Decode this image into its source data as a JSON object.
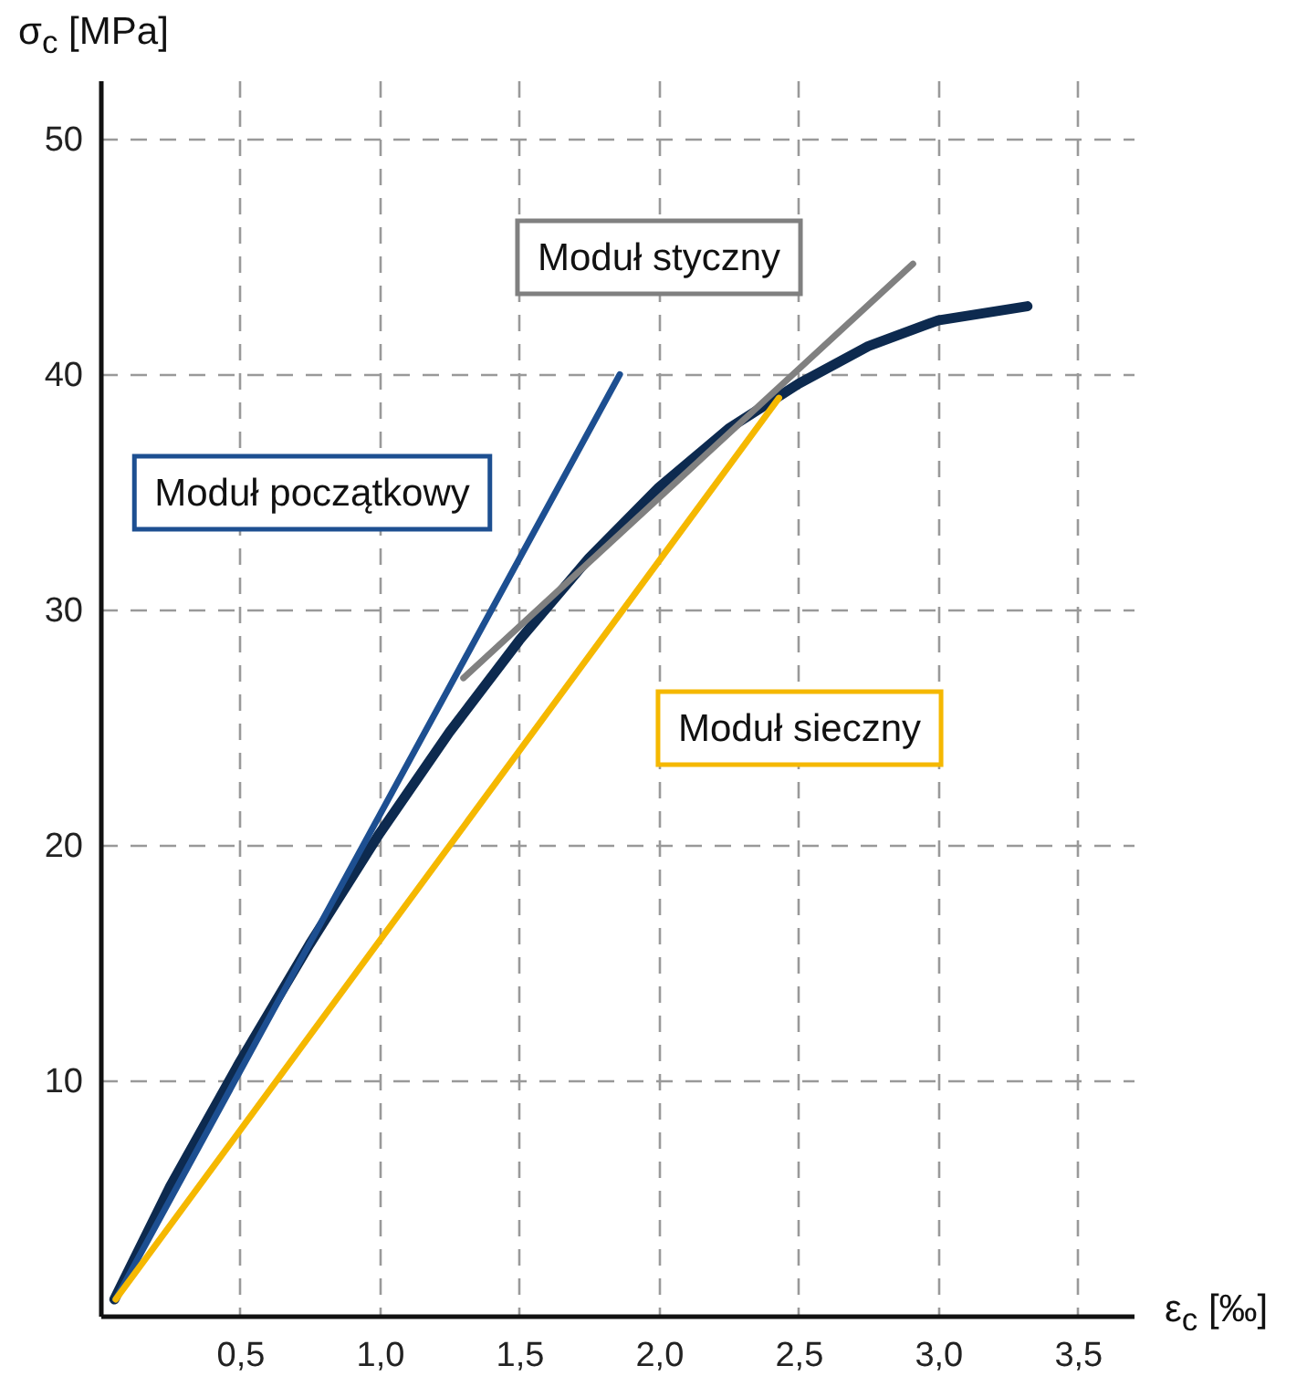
{
  "chart_data": {
    "type": "line",
    "xlabel": "ε$_{c}$ [‰]",
    "ylabel": "σ$_{c}$ [MPa]",
    "xlim": [
      0,
      3.7
    ],
    "ylim": [
      0,
      52.5
    ],
    "xticks": [
      {
        "value": 0.5,
        "label": "0,5"
      },
      {
        "value": 1.0,
        "label": "1,0"
      },
      {
        "value": 1.5,
        "label": "1,5"
      },
      {
        "value": 2.0,
        "label": "2,0"
      },
      {
        "value": 2.5,
        "label": "2,5"
      },
      {
        "value": 3.0,
        "label": "3,0"
      },
      {
        "value": 3.5,
        "label": "3,5"
      }
    ],
    "yticks": [
      10,
      20,
      30,
      40,
      50
    ],
    "grid": true,
    "marker": "none",
    "line_style": "solid",
    "series": [
      {
        "color": "#0d2a4f",
        "x": [
          0.05,
          0.25,
          0.5,
          0.75,
          1.0,
          1.25,
          1.5,
          1.75,
          2.0,
          2.25,
          2.5,
          2.75,
          3.0,
          3.32
        ],
        "values": [
          0.7,
          5.5,
          10.8,
          15.8,
          20.5,
          24.8,
          28.7,
          32.2,
          35.2,
          37.7,
          39.6,
          41.2,
          42.3,
          42.9
        ]
      },
      {
        "name": "Moduł początkowy",
        "color": "#1d4f91",
        "x": [
          0.055,
          1.86
        ],
        "values": [
          0.7,
          40.0
        ]
      },
      {
        "name": "Moduł styczny",
        "color": "#808080",
        "x": [
          1.3,
          2.91
        ],
        "values": [
          27.1,
          44.7
        ]
      },
      {
        "name": "Moduł sieczny",
        "color": "#f5b800",
        "x": [
          0.055,
          2.43
        ],
        "values": [
          0.7,
          39.0
        ]
      }
    ]
  }
}
